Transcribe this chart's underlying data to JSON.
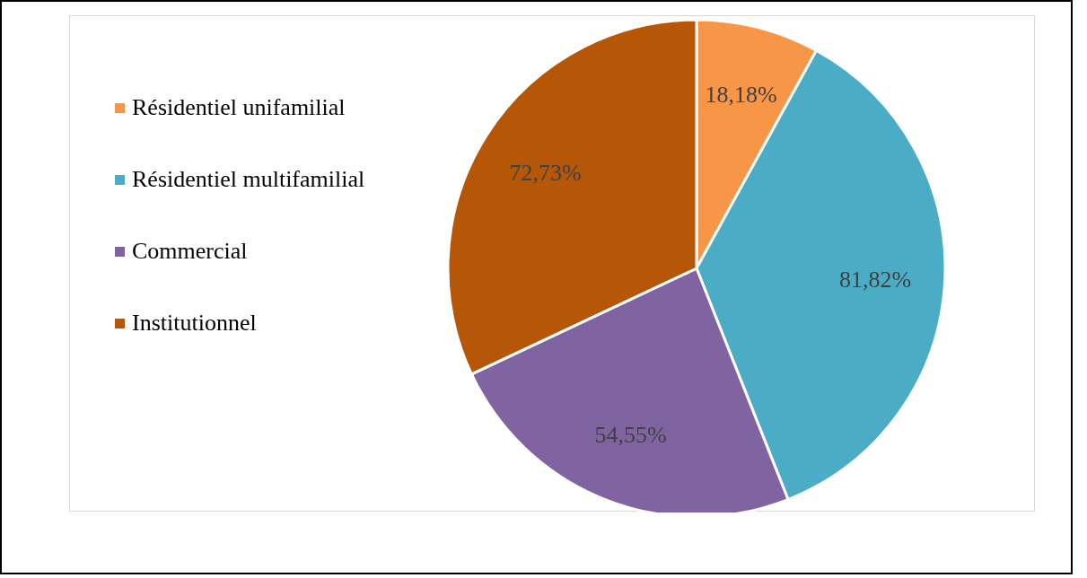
{
  "chart_data": {
    "type": "pie",
    "categories": [
      "Résidentiel unifamilial",
      "Résidentiel multifamilial",
      "Commercial",
      "Institutionnel"
    ],
    "values": [
      18.18,
      81.82,
      54.55,
      72.73
    ],
    "value_labels": [
      "18,18%",
      "81,82%",
      "54,55%",
      "72,73%"
    ],
    "colors": [
      "#f79646",
      "#4bacc6",
      "#8064a2",
      "#b65708"
    ],
    "legend": "top left"
  }
}
